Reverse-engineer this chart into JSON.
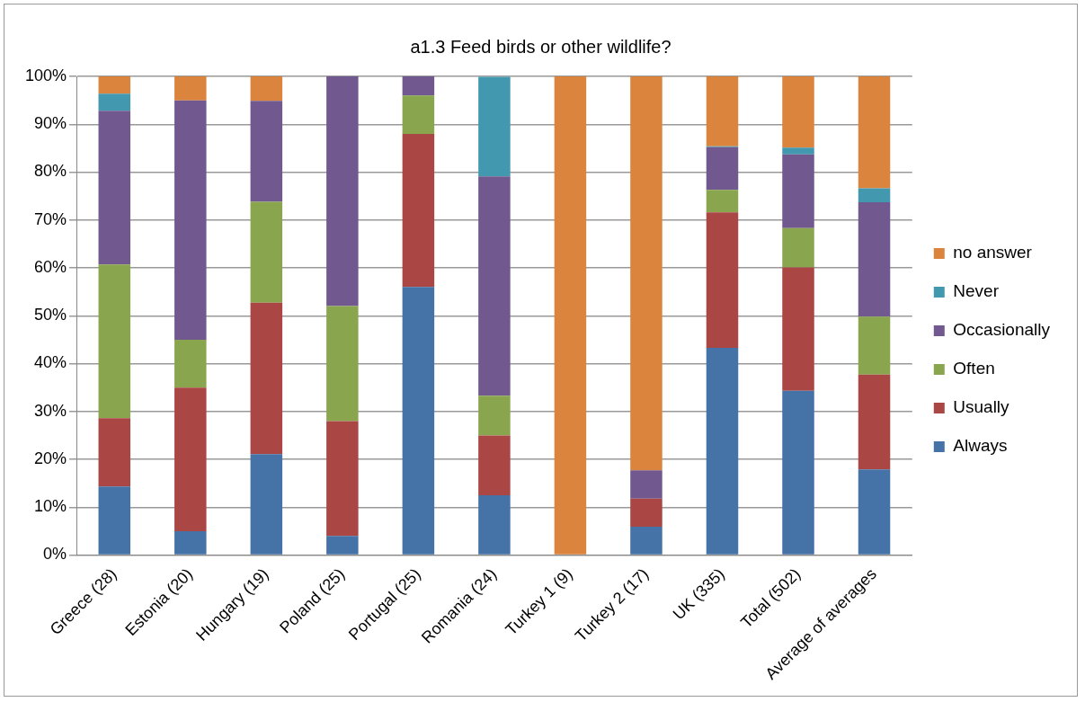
{
  "chart_data": {
    "type": "bar",
    "stacked": true,
    "title": "a1.3 Feed birds or other wildlife?",
    "categories": [
      "Greece (28)",
      "Estonia (20)",
      "Hungary (19)",
      "Poland (25)",
      "Portugal (25)",
      "Romania (24)",
      "Turkey 1 (9)",
      "Turkey 2 (17)",
      "UK (335)",
      "Total (502)",
      "Average of averages"
    ],
    "series": [
      {
        "name": "Always",
        "color": "#4572a7",
        "values": [
          14.3,
          5,
          21.1,
          4,
          56,
          12.5,
          0,
          5.9,
          43.3,
          34.3,
          17.9
        ]
      },
      {
        "name": "Usually",
        "color": "#aa4643",
        "values": [
          14.3,
          30,
          31.6,
          24,
          32,
          12.5,
          0,
          5.9,
          28.3,
          25.8,
          19.8
        ]
      },
      {
        "name": "Often",
        "color": "#89a54e",
        "values": [
          32.1,
          10,
          21.1,
          24,
          8,
          8.3,
          0,
          0,
          4.7,
          8.2,
          12.1
        ]
      },
      {
        "name": "Occasionally",
        "color": "#71588f",
        "values": [
          32.1,
          50,
          21.1,
          48,
          4,
          45.8,
          0,
          5.9,
          8.9,
          15.4,
          23.9
        ]
      },
      {
        "name": "Never",
        "color": "#4198af",
        "values": [
          3.6,
          0,
          0,
          0,
          0,
          20.8,
          0,
          0,
          0.2,
          1.4,
          2.9
        ]
      },
      {
        "name": "no answer",
        "color": "#db843d",
        "values": [
          3.6,
          5,
          5.3,
          0,
          0,
          0,
          100,
          82.4,
          14.6,
          14.9,
          23.4
        ]
      }
    ],
    "ylim": [
      0,
      100
    ],
    "yticks": [
      {
        "value": 0,
        "label": "0%"
      },
      {
        "value": 10,
        "label": "10%"
      },
      {
        "value": 20,
        "label": "20%"
      },
      {
        "value": 30,
        "label": "30%"
      },
      {
        "value": 40,
        "label": "40%"
      },
      {
        "value": 50,
        "label": "50%"
      },
      {
        "value": 60,
        "label": "60%"
      },
      {
        "value": 70,
        "label": "70%"
      },
      {
        "value": 80,
        "label": "80%"
      },
      {
        "value": 90,
        "label": "90%"
      },
      {
        "value": 100,
        "label": "100%"
      }
    ],
    "grid": "y",
    "legend": "right"
  }
}
